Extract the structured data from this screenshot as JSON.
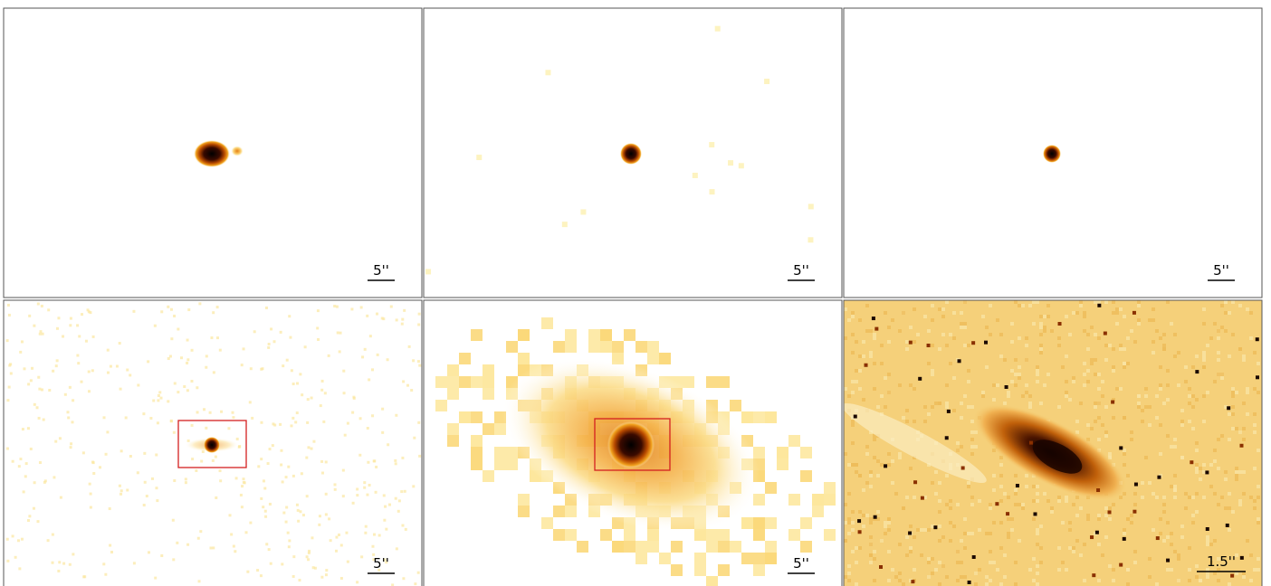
{
  "panels": [
    {
      "scale_label": "5''"
    },
    {
      "scale_label": "5''"
    },
    {
      "scale_label": "5''"
    },
    {
      "scale_label": "5''"
    },
    {
      "scale_label": "5''"
    },
    {
      "scale_label": "1.5''"
    }
  ]
}
